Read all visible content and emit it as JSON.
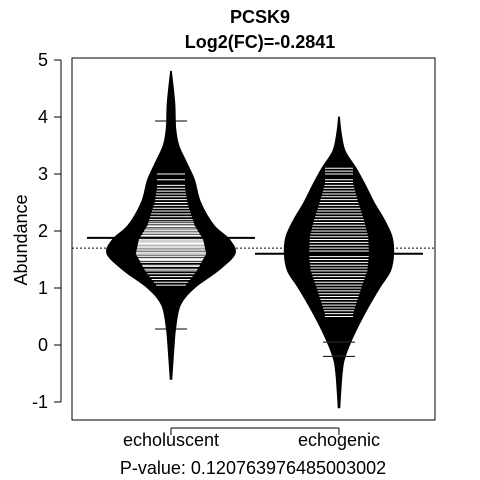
{
  "chart_data": {
    "type": "beanplot",
    "title": "PCSK9",
    "subtitle": "Log2(FC)=-0.2841",
    "xlabel": "P-value: 0.120763976485003002",
    "ylabel": "Abundance",
    "ylim": [
      -1.2,
      5.1
    ],
    "yticks": [
      -1,
      0,
      1,
      2,
      3,
      4,
      5
    ],
    "ytick_labels": [
      "-1",
      "0",
      "1",
      "2",
      "3",
      "4",
      "5"
    ],
    "categories": [
      "echoluscent",
      "echogenic"
    ],
    "overall_mean": 1.7,
    "group_means": [
      1.88,
      1.6
    ],
    "colors": {
      "bean": "#000000",
      "strip": "#ffffff",
      "mean_line": "#000000",
      "frame": "#000000"
    },
    "beans": [
      {
        "name": "echoluscent",
        "density": [
          [
            -0.6,
            0.01
          ],
          [
            0.0,
            0.04
          ],
          [
            0.3,
            0.06
          ],
          [
            0.7,
            0.12
          ],
          [
            1.0,
            0.3
          ],
          [
            1.3,
            0.6
          ],
          [
            1.6,
            0.82
          ],
          [
            1.85,
            0.75
          ],
          [
            2.1,
            0.55
          ],
          [
            2.5,
            0.38
          ],
          [
            2.9,
            0.3
          ],
          [
            3.2,
            0.2
          ],
          [
            3.5,
            0.1
          ],
          [
            3.8,
            0.06
          ],
          [
            4.2,
            0.05
          ],
          [
            4.5,
            0.03
          ],
          [
            4.8,
            0.005
          ]
        ],
        "observations": [
          0.28,
          1.05,
          1.1,
          1.15,
          1.2,
          1.25,
          1.3,
          1.33,
          1.38,
          1.4,
          1.45,
          1.48,
          1.5,
          1.52,
          1.55,
          1.58,
          1.6,
          1.62,
          1.65,
          1.67,
          1.7,
          1.72,
          1.74,
          1.76,
          1.78,
          1.8,
          1.82,
          1.84,
          1.86,
          1.88,
          1.9,
          1.92,
          1.95,
          1.97,
          2.0,
          2.02,
          2.05,
          2.08,
          2.1,
          2.13,
          2.16,
          2.2,
          2.25,
          2.3,
          2.35,
          2.4,
          2.45,
          2.5,
          2.55,
          2.6,
          2.65,
          2.7,
          2.75,
          2.8,
          2.9,
          3.0,
          3.93
        ]
      },
      {
        "name": "echogenic",
        "density": [
          [
            -1.1,
            0.01
          ],
          [
            -0.5,
            0.04
          ],
          [
            -0.2,
            0.08
          ],
          [
            0.2,
            0.2
          ],
          [
            0.6,
            0.35
          ],
          [
            1.0,
            0.52
          ],
          [
            1.3,
            0.66
          ],
          [
            1.6,
            0.7
          ],
          [
            1.9,
            0.68
          ],
          [
            2.2,
            0.58
          ],
          [
            2.5,
            0.45
          ],
          [
            2.8,
            0.34
          ],
          [
            3.1,
            0.22
          ],
          [
            3.4,
            0.08
          ],
          [
            3.7,
            0.03
          ],
          [
            4.0,
            0.005
          ]
        ],
        "observations": [
          -0.2,
          0.05,
          0.5,
          0.55,
          0.6,
          0.65,
          0.7,
          0.75,
          0.8,
          0.85,
          0.9,
          0.95,
          1.0,
          1.05,
          1.1,
          1.15,
          1.2,
          1.25,
          1.3,
          1.35,
          1.4,
          1.45,
          1.5,
          1.55,
          1.6,
          1.65,
          1.7,
          1.75,
          1.8,
          1.85,
          1.9,
          1.95,
          2.0,
          2.05,
          2.1,
          2.15,
          2.2,
          2.25,
          2.3,
          2.35,
          2.4,
          2.45,
          2.5,
          2.55,
          2.6,
          2.65,
          2.7,
          2.75,
          2.8,
          2.85,
          2.9,
          3.0,
          3.05,
          3.1
        ]
      }
    ]
  }
}
